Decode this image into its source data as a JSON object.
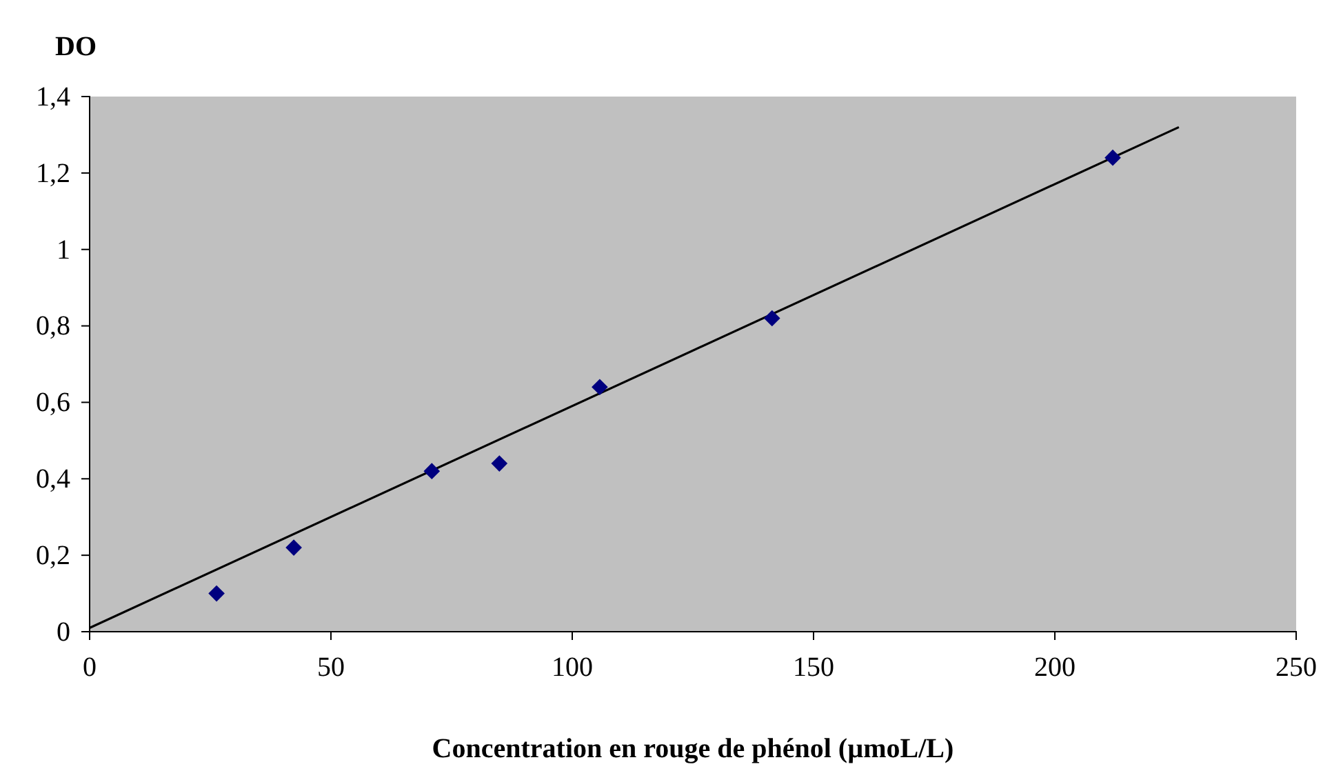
{
  "chart_data": {
    "type": "scatter",
    "ylabel": "DO",
    "xlabel": "Concentration en rouge de phénol (µmoL/L)",
    "xlim": [
      0,
      250
    ],
    "xticks": [
      0,
      50,
      100,
      150,
      200,
      250
    ],
    "ylim": [
      0,
      1.4
    ],
    "yticks": [
      0,
      {
        "value": 0.2,
        "label": "0,2"
      },
      {
        "value": 0.4,
        "label": "0,4"
      },
      {
        "value": 0.6,
        "label": "0,6"
      },
      {
        "value": 0.8,
        "label": "0,8"
      },
      1,
      {
        "value": 1.2,
        "label": "1,2"
      },
      {
        "value": 1.4,
        "label": "1,4"
      }
    ],
    "grid": false,
    "series": [
      {
        "marker": "diamond",
        "color": "#00007f",
        "x": [
          26.3,
          42.3,
          70.9,
          84.9,
          105.7,
          141.4,
          212
        ],
        "values": [
          0.1,
          0.22,
          0.42,
          0.44,
          0.64,
          0.82,
          1.24
        ]
      },
      {
        "type": "line",
        "color": "#000000",
        "x": [
          0,
          225.7
        ],
        "values": [
          0.01,
          1.32
        ]
      }
    ]
  }
}
